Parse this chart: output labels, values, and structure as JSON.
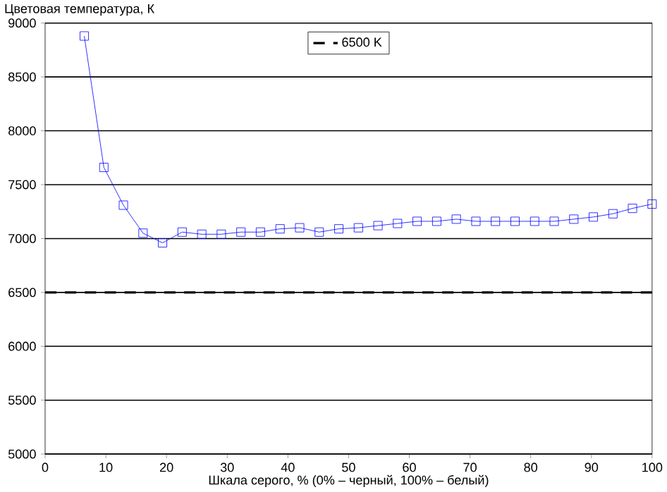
{
  "chart_data": {
    "type": "line",
    "xlabel": "Шкала серого, % (0% – черный, 100% – белый)",
    "ylabel": "Цветовая температура, К",
    "x": [
      6.45,
      9.68,
      12.9,
      16.13,
      19.35,
      22.58,
      25.81,
      29.03,
      32.26,
      35.48,
      38.71,
      41.94,
      45.16,
      48.39,
      51.61,
      54.84,
      58.06,
      61.29,
      64.52,
      67.74,
      70.97,
      74.19,
      77.42,
      80.65,
      83.87,
      87.1,
      90.32,
      93.55,
      96.77,
      100
    ],
    "series": [
      {
        "color": "#0000ff",
        "values": [
          8880,
          7660,
          7310,
          7050,
          6960,
          7060,
          7040,
          7040,
          7060,
          7060,
          7090,
          7100,
          7060,
          7090,
          7100,
          7120,
          7140,
          7160,
          7160,
          7180,
          7160,
          7160,
          7160,
          7160,
          7160,
          7180,
          7200,
          7230,
          7280,
          7320
        ]
      }
    ],
    "marker": "square",
    "line_style": "solid",
    "ref_lines": [
      {
        "axis": "y",
        "value": 6500,
        "label": "6500 K",
        "color": "#000000",
        "line_style": "dashed"
      }
    ],
    "xlim": [
      0,
      100
    ],
    "xticks": [
      0,
      10,
      20,
      30,
      40,
      50,
      60,
      70,
      80,
      90,
      100
    ],
    "ylim": [
      5000,
      9000
    ],
    "yticks": [
      5000,
      5500,
      6000,
      6500,
      7000,
      7500,
      8000,
      8500,
      9000
    ],
    "grid": "y",
    "legend": "top"
  }
}
